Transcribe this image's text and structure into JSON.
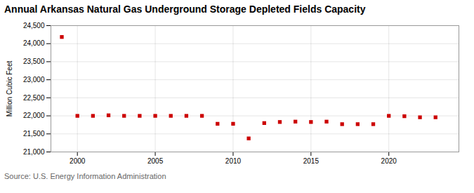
{
  "chart_data": {
    "type": "scatter",
    "title": "Annual Arkansas Natural Gas Underground Storage Depleted Fields Capacity",
    "ylabel": "Million Cubic Feet",
    "annotations": [
      "Source: U.S. Energy Information Administration"
    ],
    "x": [
      1999,
      2000,
      2001,
      2002,
      2003,
      2004,
      2005,
      2006,
      2007,
      2008,
      2009,
      2010,
      2011,
      2012,
      2013,
      2014,
      2015,
      2016,
      2017,
      2018,
      2019,
      2020,
      2021,
      2022,
      2023
    ],
    "values": [
      24185,
      22000,
      22000,
      22015,
      22000,
      22000,
      22000,
      22000,
      22000,
      22000,
      21780,
      21780,
      21375,
      21800,
      21830,
      21840,
      21830,
      21840,
      21770,
      21770,
      21770,
      22000,
      21990,
      21960,
      21960
    ],
    "color": "#cc0000",
    "marker": "square",
    "xlim": [
      1998.3,
      2024.5
    ],
    "xticks": [
      2000,
      2005,
      2010,
      2015,
      2020
    ],
    "ylim": [
      21000,
      24500
    ],
    "yticks": [
      {
        "value": 21000,
        "label": "21,000"
      },
      {
        "value": 21500,
        "label": "21,500"
      },
      {
        "value": 22000,
        "label": "22,000"
      },
      {
        "value": 22500,
        "label": "22,500"
      },
      {
        "value": 23000,
        "label": "23,000"
      },
      {
        "value": 23500,
        "label": "23,500"
      },
      {
        "value": 24000,
        "label": "24,000"
      },
      {
        "value": 24500,
        "label": "24,500"
      }
    ],
    "grid": true
  }
}
